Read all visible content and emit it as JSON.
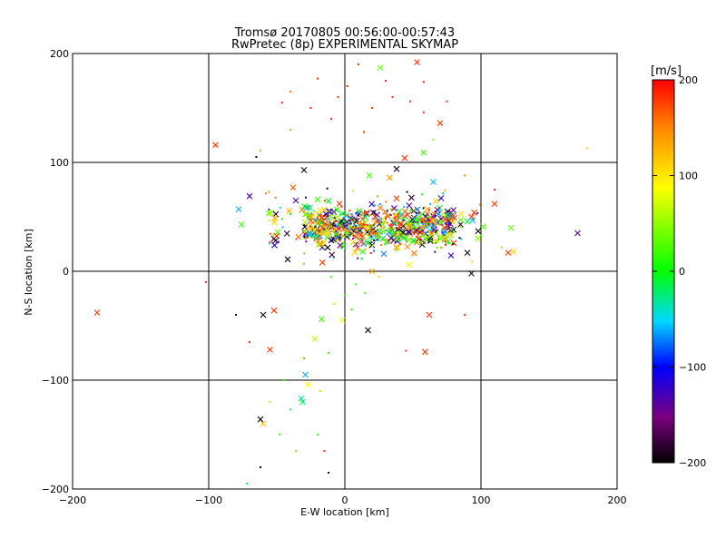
{
  "chart_data": {
    "type": "scatter",
    "title": "Tromsø 20170805 00:56:00-00:57:43",
    "subtitle": "RwPretec (8p) EXPERIMENTAL SKYMAP",
    "xlabel": "E-W location [km]",
    "ylabel": "N-S location [km]",
    "xlim": [
      -200,
      200
    ],
    "ylim": [
      -200,
      200
    ],
    "x_ticks": [
      -200,
      -100,
      0,
      100,
      200
    ],
    "y_ticks": [
      -200,
      -100,
      0,
      100,
      200
    ],
    "grid": true,
    "colorbar": {
      "label": "[m/s]",
      "range": [
        -200,
        200
      ],
      "ticks": [
        200,
        100,
        0,
        -100,
        -200
      ],
      "colormap": "black-purple-blue-cyan-green-yellow-orange-red"
    },
    "points": [
      {
        "x": -182,
        "y": -38,
        "v": 180,
        "m": "x"
      },
      {
        "x": -95,
        "y": 116,
        "v": 180,
        "m": "x"
      },
      {
        "x": -78,
        "y": 57,
        "v": -60,
        "m": "x"
      },
      {
        "x": -76,
        "y": 43,
        "v": 20,
        "m": "x"
      },
      {
        "x": -70,
        "y": 69,
        "v": -130,
        "m": "x"
      },
      {
        "x": -60,
        "y": -40,
        "v": -190,
        "m": "x"
      },
      {
        "x": -55,
        "y": -72,
        "v": 180,
        "m": "x"
      },
      {
        "x": -52,
        "y": -36,
        "v": 180,
        "m": "x"
      },
      {
        "x": -62,
        "y": -136,
        "v": -190,
        "m": "x"
      },
      {
        "x": -60,
        "y": -140,
        "v": 120,
        "m": "x"
      },
      {
        "x": -30,
        "y": 93,
        "v": -190,
        "m": "x"
      },
      {
        "x": -29,
        "y": -95,
        "v": -60,
        "m": "x"
      },
      {
        "x": -27,
        "y": -104,
        "v": 90,
        "m": "x"
      },
      {
        "x": -32,
        "y": -117,
        "v": -30,
        "m": "x"
      },
      {
        "x": -31,
        "y": -120,
        "v": -20,
        "m": "x"
      },
      {
        "x": -22,
        "y": -62,
        "v": 60,
        "m": "x"
      },
      {
        "x": -17,
        "y": -44,
        "v": 20,
        "m": "x"
      },
      {
        "x": -2,
        "y": -45,
        "v": 80,
        "m": "x"
      },
      {
        "x": 17,
        "y": -54,
        "v": -190,
        "m": "x"
      },
      {
        "x": 13,
        "y": 18,
        "v": 10,
        "m": "x"
      },
      {
        "x": 20,
        "y": 0,
        "v": 140,
        "m": "x"
      },
      {
        "x": 18,
        "y": 88,
        "v": 20,
        "m": "x"
      },
      {
        "x": 26,
        "y": 187,
        "v": 30,
        "m": "x"
      },
      {
        "x": 38,
        "y": 94,
        "v": -190,
        "m": "x"
      },
      {
        "x": 44,
        "y": 104,
        "v": 180,
        "m": "x"
      },
      {
        "x": 47,
        "y": 6,
        "v": 90,
        "m": "x"
      },
      {
        "x": 53,
        "y": 192,
        "v": 180,
        "m": "x"
      },
      {
        "x": 58,
        "y": 109,
        "v": 20,
        "m": "x"
      },
      {
        "x": 59,
        "y": -74,
        "v": 180,
        "m": "x"
      },
      {
        "x": 62,
        "y": -40,
        "v": 180,
        "m": "x"
      },
      {
        "x": 65,
        "y": 82,
        "v": -60,
        "m": "x"
      },
      {
        "x": 70,
        "y": 136,
        "v": 180,
        "m": "x"
      },
      {
        "x": 90,
        "y": 17,
        "v": -190,
        "m": "x"
      },
      {
        "x": 93,
        "y": -2,
        "v": -190,
        "m": "x"
      },
      {
        "x": 95,
        "y": 54,
        "v": 180,
        "m": "x"
      },
      {
        "x": 93,
        "y": 50,
        "v": 180,
        "m": "x"
      },
      {
        "x": 102,
        "y": 41,
        "v": 30,
        "m": "x"
      },
      {
        "x": 110,
        "y": 62,
        "v": 180,
        "m": "x"
      },
      {
        "x": 120,
        "y": 17,
        "v": 180,
        "m": "x"
      },
      {
        "x": 124,
        "y": 18,
        "v": 110,
        "m": "x"
      },
      {
        "x": 122,
        "y": 40,
        "v": 30,
        "m": "x"
      },
      {
        "x": 171,
        "y": 35,
        "v": -130,
        "m": "x"
      },
      {
        "x": 178,
        "y": 113,
        "v": 110,
        "m": "d"
      },
      {
        "x": -52,
        "y": 30,
        "v": -190,
        "m": "x"
      },
      {
        "x": -42,
        "y": 11,
        "v": -190,
        "m": "x"
      },
      {
        "x": -38,
        "y": 77,
        "v": 170,
        "m": "x"
      },
      {
        "x": -36,
        "y": 65,
        "v": -130,
        "m": "x"
      },
      {
        "x": -20,
        "y": 66,
        "v": 20,
        "m": "x"
      },
      {
        "x": -4,
        "y": 62,
        "v": 180,
        "m": "x"
      },
      {
        "x": 33,
        "y": 86,
        "v": 140,
        "m": "x"
      },
      {
        "x": 38,
        "y": 67,
        "v": 180,
        "m": "x"
      },
      {
        "x": 40,
        "y": 55,
        "v": 20,
        "m": "x"
      },
      {
        "x": 55,
        "y": 47,
        "v": -190,
        "m": "x"
      },
      {
        "x": 76,
        "y": 52,
        "v": 180,
        "m": "x"
      },
      {
        "x": 85,
        "y": 43,
        "v": -190,
        "m": "x"
      },
      {
        "x": 80,
        "y": 26,
        "v": 180,
        "m": "x"
      },
      {
        "x": 70,
        "y": 30,
        "v": 30,
        "m": "x"
      },
      {
        "x": 10,
        "y": 190,
        "v": 180,
        "m": "d"
      },
      {
        "x": -20,
        "y": 177,
        "v": 180,
        "m": "d"
      },
      {
        "x": -40,
        "y": 165,
        "v": 150,
        "m": "d"
      },
      {
        "x": -46,
        "y": 155,
        "v": 180,
        "m": "d"
      },
      {
        "x": -62,
        "y": 111,
        "v": 30,
        "m": "d"
      },
      {
        "x": -65,
        "y": 105,
        "v": -190,
        "m": "d"
      },
      {
        "x": -40,
        "y": 130,
        "v": 140,
        "m": "d"
      },
      {
        "x": -25,
        "y": 150,
        "v": 180,
        "m": "d"
      },
      {
        "x": -5,
        "y": 160,
        "v": 180,
        "m": "d"
      },
      {
        "x": 20,
        "y": 150,
        "v": 180,
        "m": "d"
      },
      {
        "x": 35,
        "y": 160,
        "v": 180,
        "m": "d"
      },
      {
        "x": 48,
        "y": 156,
        "v": 180,
        "m": "d"
      },
      {
        "x": 58,
        "y": 146,
        "v": 180,
        "m": "d"
      },
      {
        "x": 75,
        "y": 156,
        "v": 180,
        "m": "d"
      },
      {
        "x": 30,
        "y": 175,
        "v": 180,
        "m": "d"
      },
      {
        "x": 2,
        "y": 170,
        "v": 180,
        "m": "d"
      },
      {
        "x": -10,
        "y": 140,
        "v": 180,
        "m": "d"
      },
      {
        "x": 14,
        "y": 128,
        "v": 180,
        "m": "d"
      },
      {
        "x": -48,
        "y": -150,
        "v": 30,
        "m": "d"
      },
      {
        "x": -72,
        "y": -195,
        "v": -20,
        "m": "d"
      },
      {
        "x": -62,
        "y": -180,
        "v": -190,
        "m": "d"
      },
      {
        "x": -12,
        "y": -185,
        "v": -190,
        "m": "d"
      },
      {
        "x": -36,
        "y": -165,
        "v": 40,
        "m": "d"
      },
      {
        "x": -20,
        "y": -150,
        "v": 20,
        "m": "d"
      },
      {
        "x": -15,
        "y": -165,
        "v": 180,
        "m": "d"
      },
      {
        "x": -40,
        "y": -127,
        "v": -30,
        "m": "d"
      },
      {
        "x": -18,
        "y": -110,
        "v": 110,
        "m": "d"
      },
      {
        "x": -55,
        "y": -120,
        "v": 60,
        "m": "d"
      },
      {
        "x": -45,
        "y": -100,
        "v": 20,
        "m": "d"
      },
      {
        "x": -70,
        "y": -65,
        "v": 180,
        "m": "d"
      },
      {
        "x": -80,
        "y": -40,
        "v": -190,
        "m": "d"
      },
      {
        "x": -30,
        "y": -80,
        "v": 150,
        "m": "d"
      },
      {
        "x": -12,
        "y": -75,
        "v": 20,
        "m": "d"
      },
      {
        "x": 0,
        "y": -22,
        "v": 10,
        "m": "d"
      },
      {
        "x": 8,
        "y": -12,
        "v": 20,
        "m": "d"
      },
      {
        "x": -10,
        "y": -5,
        "v": 20,
        "m": "d"
      },
      {
        "x": 5,
        "y": -35,
        "v": 10,
        "m": "d"
      },
      {
        "x": -8,
        "y": -30,
        "v": 60,
        "m": "d"
      },
      {
        "x": 15,
        "y": -20,
        "v": 20,
        "m": "d"
      },
      {
        "x": 25,
        "y": -5,
        "v": 110,
        "m": "d"
      },
      {
        "x": 45,
        "y": -73,
        "v": 180,
        "m": "d"
      },
      {
        "x": 88,
        "y": -40,
        "v": 180,
        "m": "d"
      },
      {
        "x": 58,
        "y": 174,
        "v": 180,
        "m": "d"
      },
      {
        "x": 65,
        "y": 121,
        "v": 40,
        "m": "d"
      },
      {
        "x": 88,
        "y": 88,
        "v": 150,
        "m": "d"
      },
      {
        "x": 110,
        "y": 75,
        "v": 180,
        "m": "d"
      },
      {
        "x": 115,
        "y": 22,
        "v": 40,
        "m": "d"
      },
      {
        "x": 100,
        "y": 33,
        "v": 20,
        "m": "d"
      },
      {
        "x": -102,
        "y": -10,
        "v": 180,
        "m": "d"
      }
    ],
    "cluster": {
      "count": 780,
      "x_range": [
        -60,
        100
      ],
      "y_range": [
        5,
        80
      ],
      "core": {
        "x": [
          -30,
          80
        ],
        "y": [
          20,
          60
        ]
      },
      "velocity_mix": [
        -190,
        -130,
        -60,
        0,
        40,
        110,
        150,
        180
      ]
    }
  }
}
